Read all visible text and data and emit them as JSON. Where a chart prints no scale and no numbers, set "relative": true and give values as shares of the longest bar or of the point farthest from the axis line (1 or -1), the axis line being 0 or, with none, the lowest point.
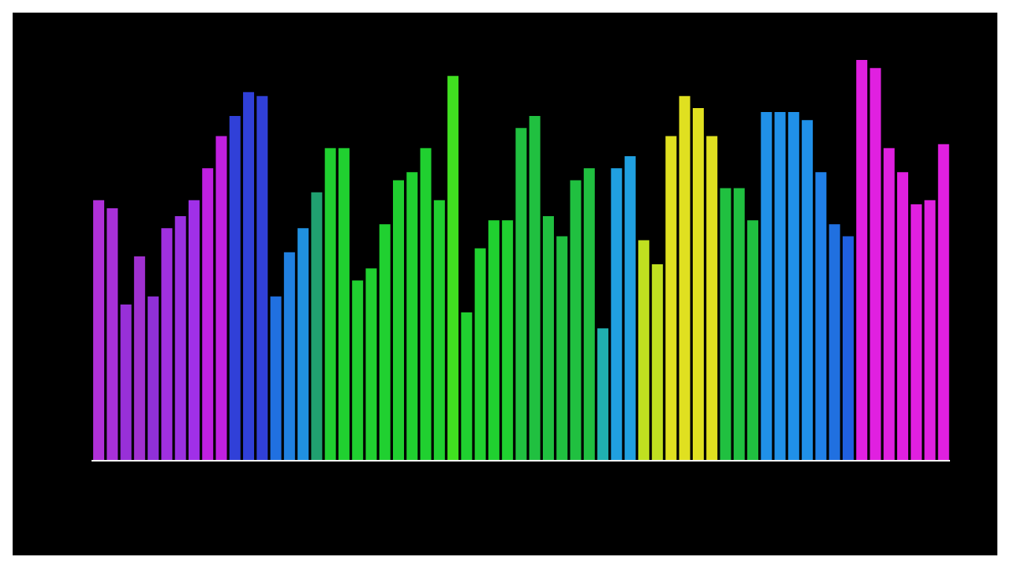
{
  "chart_data": {
    "type": "bar",
    "relative": true,
    "categories": [
      null,
      null,
      null,
      null,
      null,
      null,
      null,
      null,
      null,
      null,
      null,
      null,
      null,
      null,
      null,
      null,
      null,
      null,
      null,
      null,
      null,
      null,
      null,
      null,
      null,
      null,
      null,
      null,
      null,
      null,
      null,
      null,
      null,
      null,
      null,
      null,
      null,
      null,
      null,
      null,
      null,
      null,
      null,
      null,
      null,
      null,
      null,
      null,
      null,
      null,
      null,
      null,
      null,
      null,
      null,
      null,
      null,
      null,
      null,
      null,
      null,
      null,
      null
    ],
    "values": [
      0.65,
      0.63,
      0.39,
      0.51,
      0.41,
      0.58,
      0.61,
      0.65,
      0.73,
      0.81,
      0.86,
      0.92,
      0.91,
      0.41,
      0.52,
      0.58,
      0.67,
      0.78,
      0.78,
      0.45,
      0.48,
      0.59,
      0.7,
      0.72,
      0.78,
      0.65,
      0.96,
      0.37,
      0.53,
      0.6,
      0.6,
      0.83,
      0.86,
      0.61,
      0.56,
      0.7,
      0.73,
      0.33,
      0.73,
      0.76,
      0.55,
      0.49,
      0.81,
      0.91,
      0.88,
      0.81,
      0.68,
      0.68,
      0.6,
      0.87,
      0.87,
      0.87,
      0.85,
      0.72,
      0.59,
      0.56,
      1,
      0.98,
      0.78,
      0.72,
      0.64,
      0.65,
      0.79
    ],
    "colors": [
      "#b030d8",
      "#a830d8",
      "#9830d8",
      "#a030d0",
      "#9030d8",
      "#a030e0",
      "#9a30e0",
      "#a030e8",
      "#c020e0",
      "#c020e0",
      "#3040d8",
      "#3040d8",
      "#3040d8",
      "#2070e0",
      "#2080e0",
      "#2090e0",
      "#20a070",
      "#20d030",
      "#20d030",
      "#20d030",
      "#20d030",
      "#20d030",
      "#20d030",
      "#20d030",
      "#20d030",
      "#20d030",
      "#40e020",
      "#20d030",
      "#20d030",
      "#20d030",
      "#20d030",
      "#20c040",
      "#20c040",
      "#20c040",
      "#20c040",
      "#20c040",
      "#20c040",
      "#20b0b0",
      "#20a0e0",
      "#20a0e0",
      "#c0e020",
      "#c0e020",
      "#e0e020",
      "#e0e020",
      "#e0e020",
      "#e0e020",
      "#20c040",
      "#20c040",
      "#20c040",
      "#2090e8",
      "#2090e8",
      "#2090e8",
      "#2090e8",
      "#2080e8",
      "#2070e0",
      "#2060e0",
      "#e020e0",
      "#e020e0",
      "#e020e0",
      "#e020e0",
      "#e020e0",
      "#e020e0",
      "#e020e0"
    ]
  }
}
